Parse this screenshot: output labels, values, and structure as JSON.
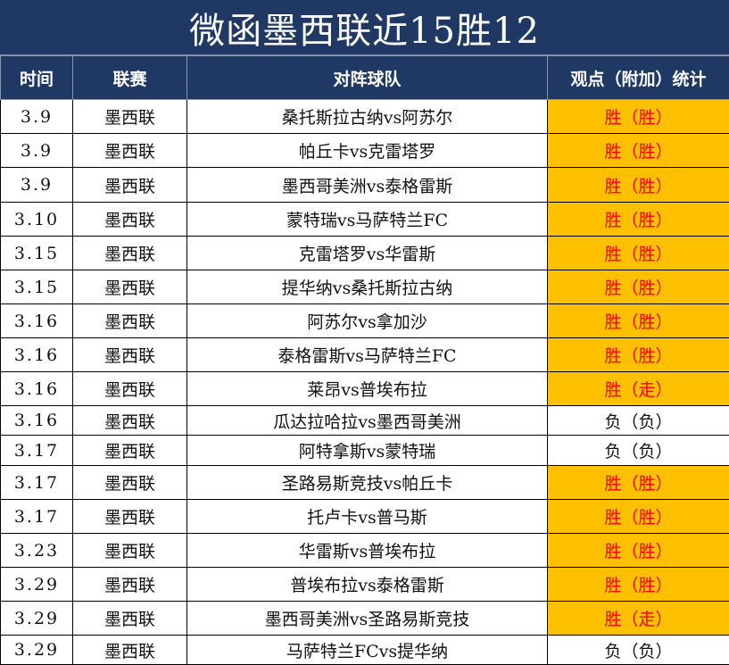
{
  "title": "微函墨西联近15胜12",
  "headers": {
    "time": "时间",
    "league": "联赛",
    "match": "对阵球队",
    "result": "观点（附加）统计"
  },
  "colors": {
    "header_bg": "#1f3864",
    "win_bg": "#ffc000",
    "win_text": "#ff0000"
  },
  "rows": [
    {
      "time": "3.9",
      "league": "墨西联",
      "match": "桑托斯拉古纳vs阿苏尔",
      "result": "胜（胜）",
      "win": true
    },
    {
      "time": "3.9",
      "league": "墨西联",
      "match": "帕丘卡vs克雷塔罗",
      "result": "胜（胜）",
      "win": true
    },
    {
      "time": "3.9",
      "league": "墨西联",
      "match": "墨西哥美洲vs泰格雷斯",
      "result": "胜（胜）",
      "win": true
    },
    {
      "time": "3.10",
      "league": "墨西联",
      "match": "蒙特瑞vs马萨特兰FC",
      "result": "胜（胜）",
      "win": true
    },
    {
      "time": "3.15",
      "league": "墨西联",
      "match": "克雷塔罗vs华雷斯",
      "result": "胜（胜）",
      "win": true
    },
    {
      "time": "3.15",
      "league": "墨西联",
      "match": "提华纳vs桑托斯拉古纳",
      "result": "胜（胜）",
      "win": true
    },
    {
      "time": "3.16",
      "league": "墨西联",
      "match": "阿苏尔vs拿加沙",
      "result": "胜（胜）",
      "win": true
    },
    {
      "time": "3.16",
      "league": "墨西联",
      "match": "泰格雷斯vs马萨特兰FC",
      "result": "胜（胜）",
      "win": true
    },
    {
      "time": "3.16",
      "league": "墨西联",
      "match": "莱昂vs普埃布拉",
      "result": "胜（走）",
      "win": true
    },
    {
      "time": "3.16",
      "league": "墨西联",
      "match": "瓜达拉哈拉vs墨西哥美洲",
      "result": "负（负）",
      "win": false
    },
    {
      "time": "3.17",
      "league": "墨西联",
      "match": "阿特拿斯vs蒙特瑞",
      "result": "负（负）",
      "win": false
    },
    {
      "time": "3.17",
      "league": "墨西联",
      "match": "圣路易斯竞技vs帕丘卡",
      "result": "胜（胜）",
      "win": true
    },
    {
      "time": "3.17",
      "league": "墨西联",
      "match": "托卢卡vs普马斯",
      "result": "胜（胜）",
      "win": true
    },
    {
      "time": "3.23",
      "league": "墨西联",
      "match": "华雷斯vs普埃布拉",
      "result": "胜（胜）",
      "win": true
    },
    {
      "time": "3.29",
      "league": "墨西联",
      "match": "普埃布拉vs泰格雷斯",
      "result": "胜（胜）",
      "win": true
    },
    {
      "time": "3.29",
      "league": "墨西联",
      "match": "墨西哥美洲vs圣路易斯竞技",
      "result": "胜（走）",
      "win": true
    },
    {
      "time": "3.29",
      "league": "墨西联",
      "match": "马萨特兰FCvs提华纳",
      "result": "负（负）",
      "win": false
    }
  ]
}
